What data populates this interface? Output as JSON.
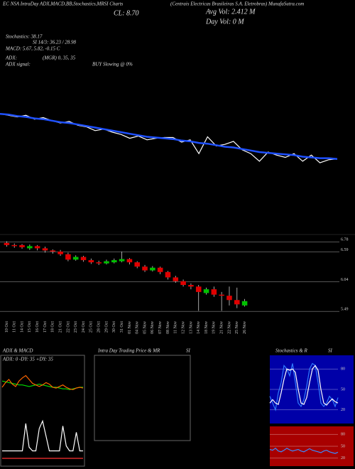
{
  "header": {
    "title": "EC NSA IntraDay ADX,MACD,BB,Stochastics,MRSI Charts",
    "company": "(Centrais Electricas Brasileiras S.A. Eletrobras) MunafaSutra.com",
    "close": "CL: 8.70",
    "avg_vol": "Avg Vol: 2.412  M",
    "day_vol": "Day Vol: 0  M",
    "stoch": "Stochastics: 38.17",
    "si": "SI 14/3: 36.23 / 28.98",
    "macd": "MACD: 5.67, 5.82, -0.15 C",
    "adx": "ADX:",
    "adx_vals": "(MGR) 0, 35, 35",
    "adx_signal": "ADX  signal:",
    "signal": "BUY Slowing @ 0%",
    "panel_adx": "ADX  & MACD",
    "panel_adx_vals": "ADX: 0  -DY: 35  +DY: 35",
    "panel_intraday": "Intra  Day Trading Price  & MR",
    "panel_intraday_si": "SI",
    "panel_stoch": "Stochastics & R",
    "panel_stoch_si": "SI"
  },
  "chart_data": [
    {
      "type": "line",
      "ylim": [
        5.6,
        6.9
      ],
      "series": [
        {
          "color": "#ffffff",
          "values": [
            6.62,
            6.6,
            6.58,
            6.6,
            6.55,
            6.57,
            6.53,
            6.5,
            6.52,
            6.47,
            6.45,
            6.4,
            6.42,
            6.38,
            6.35,
            6.3,
            6.33,
            6.28,
            6.3,
            6.31,
            6.31,
            6.25,
            6.28,
            6.1,
            6.32,
            6.2,
            6.22,
            6.26,
            6.15,
            6.1,
            6.0,
            6.12,
            6.08,
            6.05,
            6.1,
            6.0,
            6.08,
            5.98,
            6.02,
            6.03
          ]
        },
        {
          "color": "#1e50ff",
          "values": [
            6.62,
            6.61,
            6.59,
            6.58,
            6.56,
            6.55,
            6.53,
            6.51,
            6.5,
            6.48,
            6.46,
            6.44,
            6.42,
            6.4,
            6.38,
            6.36,
            6.34,
            6.32,
            6.31,
            6.3,
            6.29,
            6.27,
            6.26,
            6.24,
            6.23,
            6.21,
            6.19,
            6.18,
            6.16,
            6.14,
            6.12,
            6.11,
            6.1,
            6.09,
            6.08,
            6.06,
            6.05,
            6.04,
            6.04,
            6.03
          ]
        }
      ]
    },
    {
      "type": "candlestick",
      "ylim": [
        5.4,
        6.85
      ],
      "yticks": [
        6.78,
        6.59,
        6.04,
        5.49
      ],
      "up_color": "#00c000",
      "down_color": "#e00000",
      "categories": [
        "10 Oct",
        "11 Oct",
        "14 Oct",
        "15 Oct",
        "16 Oct",
        "17 Oct",
        "18 Oct",
        "21 Oct",
        "22 Oct",
        "23 Oct",
        "24 Oct",
        "25 Oct",
        "28 Oct",
        "29 Oct",
        "30 Oct",
        "31 Oct",
        "01 Nov",
        "04 Nov",
        "05 Nov",
        "06 Nov",
        "07 Nov",
        "08 Nov",
        "11 Nov",
        "12 Nov",
        "13 Nov",
        "14 Nov",
        "18 Nov",
        "19 Nov",
        "21 Nov",
        "22 Nov",
        "25 Nov",
        "26 Nov"
      ],
      "open": [
        6.76,
        6.72,
        6.72,
        6.66,
        6.7,
        6.66,
        6.62,
        6.6,
        6.55,
        6.45,
        6.5,
        6.44,
        6.4,
        6.38,
        6.4,
        6.42,
        6.46,
        6.4,
        6.32,
        6.25,
        6.3,
        6.22,
        6.12,
        6.05,
        5.98,
        5.95,
        5.83,
        5.9,
        5.8,
        5.78,
        5.7,
        5.6
      ],
      "high": [
        6.79,
        6.75,
        6.74,
        6.73,
        6.72,
        6.69,
        6.64,
        6.63,
        6.58,
        6.53,
        6.52,
        6.47,
        6.43,
        6.45,
        6.47,
        6.6,
        6.48,
        6.42,
        6.35,
        6.33,
        6.32,
        6.24,
        6.15,
        6.08,
        6.01,
        5.98,
        5.93,
        5.95,
        5.85,
        5.95,
        5.93,
        5.72
      ],
      "low": [
        6.69,
        6.67,
        6.65,
        6.63,
        6.62,
        6.58,
        6.56,
        6.52,
        6.42,
        6.43,
        6.41,
        6.37,
        6.35,
        6.36,
        6.38,
        6.4,
        6.36,
        6.29,
        6.22,
        6.23,
        6.18,
        6.08,
        6.02,
        5.95,
        5.9,
        5.5,
        5.8,
        5.76,
        5.5,
        5.6,
        5.55,
        5.58
      ],
      "close": [
        6.72,
        6.7,
        6.68,
        6.7,
        6.66,
        6.62,
        6.6,
        6.55,
        6.45,
        6.5,
        6.44,
        6.4,
        6.38,
        6.42,
        6.44,
        6.46,
        6.4,
        6.32,
        6.25,
        6.3,
        6.22,
        6.12,
        6.05,
        5.98,
        5.95,
        5.85,
        5.9,
        5.8,
        5.78,
        5.7,
        5.62,
        5.68
      ]
    },
    {
      "type": "line",
      "ylim": [
        0,
        60
      ],
      "series": [
        {
          "color": "#00dd00",
          "values": [
            38,
            37,
            36,
            35,
            34,
            33,
            33,
            32,
            31,
            32,
            33,
            34,
            33,
            32,
            31,
            30,
            30,
            29,
            28,
            28,
            27,
            28,
            29,
            30,
            30
          ]
        },
        {
          "color": "#ff6600",
          "values": [
            30,
            36,
            40,
            34,
            31,
            38,
            42,
            45,
            40,
            35,
            33,
            31,
            33,
            36,
            34,
            30,
            29,
            31,
            33,
            30,
            28,
            27,
            29,
            30,
            29
          ]
        }
      ]
    },
    {
      "type": "line",
      "ylim": [
        -10,
        30
      ],
      "series": [
        {
          "color": "#ffffff",
          "values": [
            0,
            0,
            0,
            0,
            0,
            0,
            0,
            22,
            3,
            0,
            0,
            18,
            24,
            12,
            0,
            0,
            0,
            0,
            20,
            4,
            0,
            0,
            15,
            0,
            0
          ]
        },
        {
          "color": "#ff3030",
          "values": [
            -6,
            -6,
            -6,
            -6,
            -6,
            -6,
            -6,
            -6,
            -6,
            -6,
            -6,
            -6,
            -6,
            -6,
            -6,
            -6,
            -6,
            -6,
            -6,
            -6,
            -6,
            -6,
            -6,
            -6,
            -6
          ]
        }
      ]
    },
    {
      "type": "line",
      "ylim": [
        0,
        100
      ],
      "yticks": [
        80,
        50,
        20
      ],
      "background": "#0000a8",
      "series": [
        {
          "color": "#2f7bff",
          "values": [
            40,
            30,
            20,
            45,
            60,
            85,
            80,
            70,
            88,
            60,
            30,
            25,
            35,
            55,
            80,
            88,
            85,
            60,
            30,
            25,
            30,
            40,
            35,
            25,
            38
          ]
        },
        {
          "color": "#ffffff",
          "values": [
            30,
            35,
            30,
            28,
            45,
            65,
            80,
            78,
            80,
            75,
            50,
            30,
            28,
            38,
            60,
            80,
            85,
            78,
            50,
            30,
            27,
            32,
            36,
            32,
            30
          ]
        }
      ]
    },
    {
      "type": "line",
      "ylim": [
        0,
        100
      ],
      "yticks": [
        80,
        50,
        20
      ],
      "background": "#a80000",
      "series": [
        {
          "color": "#3a8bff",
          "values": [
            42,
            40,
            45,
            38,
            36,
            40,
            45,
            41,
            38,
            40,
            42,
            38,
            36,
            40,
            44,
            40,
            38,
            36,
            34,
            38,
            40,
            36,
            34,
            32,
            35
          ]
        }
      ]
    }
  ]
}
